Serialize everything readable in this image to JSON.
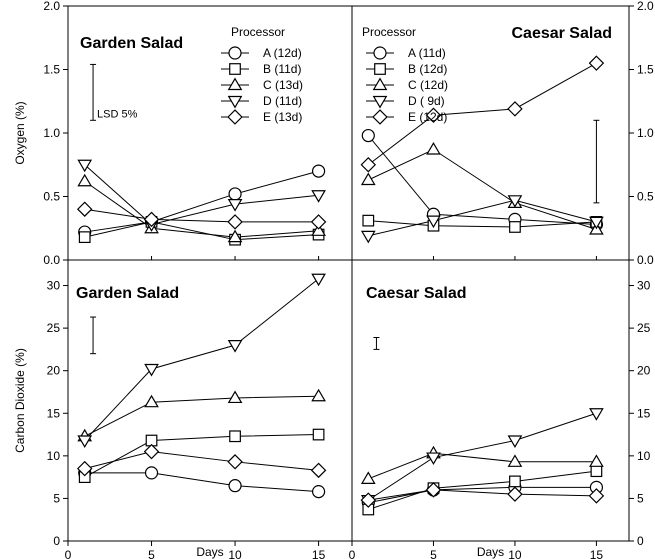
{
  "chart_data": [
    {
      "type": "line",
      "title": "Garden Salad",
      "xlabel": "",
      "ylabel": "Oxygen (%)",
      "xlim": [
        0,
        17
      ],
      "ylim": [
        0,
        2.0
      ],
      "xticks": [
        0,
        5,
        10,
        15
      ],
      "yticks": [
        "0.0",
        "0.5",
        "1.0",
        "1.5",
        "2.0"
      ],
      "legend_title": "Processor",
      "lsd": {
        "label": "LSD 5%",
        "x": 1.5,
        "from": 1.1,
        "to": 1.54
      },
      "x": [
        1,
        5,
        10,
        15
      ],
      "series": [
        {
          "name": "A (12d)",
          "marker": "circle",
          "values": [
            0.22,
            0.3,
            0.52,
            0.7
          ]
        },
        {
          "name": "B (11d)",
          "marker": "square",
          "values": [
            0.18,
            0.3,
            0.16,
            0.2
          ]
        },
        {
          "name": "C (13d)",
          "marker": "triangle-up",
          "values": [
            0.62,
            0.25,
            0.18,
            0.23
          ]
        },
        {
          "name": "D (11d)",
          "marker": "triangle-down",
          "values": [
            0.75,
            0.28,
            0.44,
            0.51
          ]
        },
        {
          "name": "E (13d)",
          "marker": "diamond",
          "values": [
            0.4,
            0.32,
            0.3,
            0.3
          ]
        }
      ]
    },
    {
      "type": "line",
      "title": "Caesar Salad",
      "xlabel": "",
      "ylabel": "",
      "xlim": [
        0,
        17
      ],
      "ylim": [
        0,
        2.0
      ],
      "xticks": [
        0,
        5,
        10,
        15
      ],
      "yticks": [
        "0.0",
        "0.5",
        "1.0",
        "1.5",
        "2.0"
      ],
      "legend_title": "Processor",
      "lsd": {
        "label": "",
        "x": 15,
        "from": 0.45,
        "to": 1.1
      },
      "x": [
        1,
        5,
        10,
        15
      ],
      "series": [
        {
          "name": "A (11d)",
          "marker": "circle",
          "values": [
            0.98,
            0.36,
            0.32,
            0.28
          ]
        },
        {
          "name": "B (12d)",
          "marker": "square",
          "values": [
            0.31,
            0.27,
            0.26,
            0.3
          ]
        },
        {
          "name": "C (12d)",
          "marker": "triangle-up",
          "values": [
            0.63,
            0.87,
            0.45,
            0.24
          ]
        },
        {
          "name": "D ( 9d)",
          "marker": "triangle-down",
          "values": [
            0.19,
            0.31,
            0.47,
            0.3
          ]
        },
        {
          "name": "E (12d)",
          "marker": "diamond",
          "values": [
            0.75,
            1.14,
            1.19,
            1.55
          ]
        }
      ]
    },
    {
      "type": "line",
      "title": "Garden Salad",
      "xlabel": "Days",
      "ylabel": "Carbon Dioxide (%)",
      "xlim": [
        0,
        17
      ],
      "ylim": [
        0,
        33
      ],
      "xticks": [
        0,
        5,
        10,
        15
      ],
      "yticks": [
        "0",
        "5",
        "10",
        "15",
        "20",
        "25",
        "30"
      ],
      "lsd": {
        "label": "",
        "x": 1.5,
        "from": 22,
        "to": 26.3
      },
      "x": [
        1,
        5,
        10,
        15
      ],
      "series": [
        {
          "name": "A",
          "marker": "circle",
          "values": [
            8,
            8,
            6.5,
            5.8
          ]
        },
        {
          "name": "B",
          "marker": "square",
          "values": [
            7.5,
            11.8,
            12.3,
            12.5
          ]
        },
        {
          "name": "C",
          "marker": "triangle-up",
          "values": [
            12.3,
            16.3,
            16.8,
            17
          ]
        },
        {
          "name": "D",
          "marker": "triangle-down",
          "values": [
            11.8,
            20.2,
            23,
            30.8
          ]
        },
        {
          "name": "E",
          "marker": "diamond",
          "values": [
            8.5,
            10.5,
            9.3,
            8.3
          ]
        }
      ]
    },
    {
      "type": "line",
      "title": "Caesar Salad",
      "xlabel": "Days",
      "ylabel": "",
      "xlim": [
        0,
        17
      ],
      "ylim": [
        0,
        33
      ],
      "xticks": [
        0,
        5,
        10,
        15
      ],
      "yticks": [
        "0",
        "5",
        "10",
        "15",
        "20",
        "25",
        "30"
      ],
      "lsd": {
        "label": "",
        "x": 1.5,
        "from": 22.5,
        "to": 23.9
      },
      "x": [
        1,
        5,
        10,
        15
      ],
      "series": [
        {
          "name": "A",
          "marker": "circle",
          "values": [
            4.5,
            6,
            6.3,
            6.3
          ]
        },
        {
          "name": "B",
          "marker": "square",
          "values": [
            3.7,
            6.2,
            7,
            8.2
          ]
        },
        {
          "name": "C",
          "marker": "triangle-up",
          "values": [
            7.3,
            10.3,
            9.3,
            9.3
          ]
        },
        {
          "name": "D",
          "marker": "triangle-down",
          "values": [
            4.8,
            9.8,
            11.8,
            15
          ]
        },
        {
          "name": "E",
          "marker": "diamond",
          "values": [
            4.8,
            6,
            5.5,
            5.3
          ]
        }
      ]
    }
  ]
}
